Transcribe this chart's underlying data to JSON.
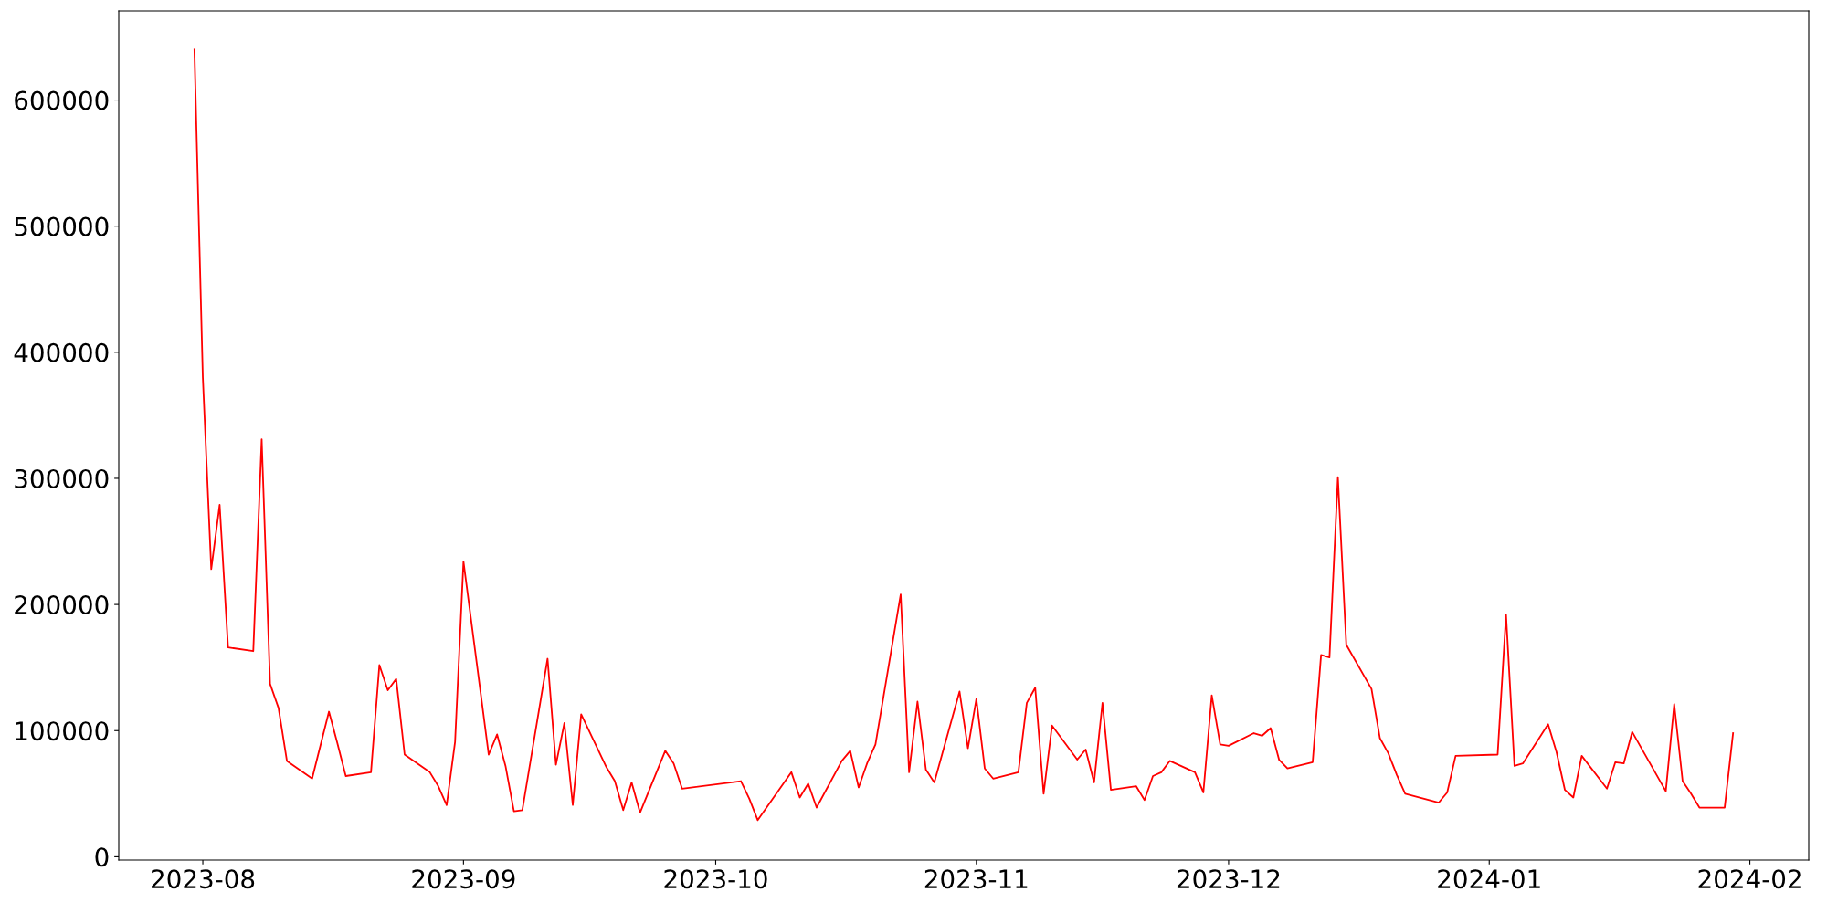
{
  "chart_data": {
    "type": "line",
    "x": [
      "2023-07-31",
      "2023-08-01",
      "2023-08-02",
      "2023-08-03",
      "2023-08-04",
      "2023-08-07",
      "2023-08-08",
      "2023-08-09",
      "2023-08-10",
      "2023-08-11",
      "2023-08-14",
      "2023-08-16",
      "2023-08-17",
      "2023-08-18",
      "2023-08-21",
      "2023-08-22",
      "2023-08-23",
      "2023-08-24",
      "2023-08-25",
      "2023-08-28",
      "2023-08-29",
      "2023-08-30",
      "2023-08-31",
      "2023-09-01",
      "2023-09-04",
      "2023-09-05",
      "2023-09-06",
      "2023-09-07",
      "2023-09-08",
      "2023-09-11",
      "2023-09-12",
      "2023-09-13",
      "2023-09-14",
      "2023-09-15",
      "2023-09-18",
      "2023-09-19",
      "2023-09-20",
      "2023-09-21",
      "2023-09-22",
      "2023-09-25",
      "2023-09-26",
      "2023-09-27",
      "2023-10-04",
      "2023-10-05",
      "2023-10-06",
      "2023-10-10",
      "2023-10-11",
      "2023-10-12",
      "2023-10-13",
      "2023-10-16",
      "2023-10-17",
      "2023-10-18",
      "2023-10-19",
      "2023-10-20",
      "2023-10-23",
      "2023-10-24",
      "2023-10-25",
      "2023-10-26",
      "2023-10-27",
      "2023-10-30",
      "2023-10-31",
      "2023-11-01",
      "2023-11-02",
      "2023-11-03",
      "2023-11-06",
      "2023-11-07",
      "2023-11-08",
      "2023-11-09",
      "2023-11-10",
      "2023-11-13",
      "2023-11-14",
      "2023-11-15",
      "2023-11-16",
      "2023-11-17",
      "2023-11-20",
      "2023-11-21",
      "2023-11-22",
      "2023-11-23",
      "2023-11-24",
      "2023-11-27",
      "2023-11-28",
      "2023-11-29",
      "2023-11-30",
      "2023-12-01",
      "2023-12-04",
      "2023-12-05",
      "2023-12-06",
      "2023-12-07",
      "2023-12-08",
      "2023-12-11",
      "2023-12-12",
      "2023-12-13",
      "2023-12-14",
      "2023-12-15",
      "2023-12-18",
      "2023-12-19",
      "2023-12-20",
      "2023-12-21",
      "2023-12-22",
      "2023-12-26",
      "2023-12-27",
      "2023-12-28",
      "2024-01-02",
      "2024-01-03",
      "2024-01-04",
      "2024-01-05",
      "2024-01-08",
      "2024-01-09",
      "2024-01-10",
      "2024-01-11",
      "2024-01-12",
      "2024-01-15",
      "2024-01-16",
      "2024-01-17",
      "2024-01-18",
      "2024-01-22",
      "2024-01-23",
      "2024-01-24",
      "2024-01-25",
      "2024-01-26",
      "2024-01-29",
      "2024-01-30"
    ],
    "series": [
      {
        "color": "#ff0000",
        "values": [
          640000,
          380000,
          228000,
          279000,
          166000,
          163000,
          331000,
          137000,
          118000,
          76000,
          62000,
          115000,
          90000,
          64000,
          67000,
          152000,
          132000,
          141000,
          81000,
          67000,
          56000,
          41000,
          91000,
          234000,
          81000,
          97000,
          72000,
          36000,
          37000,
          157000,
          73000,
          106000,
          41000,
          113000,
          71000,
          60000,
          37000,
          59000,
          35000,
          84000,
          74000,
          54000,
          60000,
          46000,
          29000,
          67000,
          47000,
          58000,
          39000,
          76000,
          84000,
          55000,
          74000,
          89000,
          208000,
          67000,
          123000,
          69000,
          59000,
          131000,
          86000,
          125000,
          70000,
          62000,
          67000,
          122000,
          134000,
          50000,
          104000,
          77000,
          85000,
          59000,
          122000,
          53000,
          56000,
          45000,
          64000,
          67000,
          76000,
          67000,
          51000,
          128000,
          89000,
          88000,
          98000,
          96000,
          102000,
          77000,
          70000,
          75000,
          160000,
          158000,
          301000,
          168000,
          133000,
          94000,
          82000,
          65000,
          50000,
          43000,
          51000,
          80000,
          81000,
          192000,
          72000,
          74000,
          105000,
          83000,
          53000,
          47000,
          80000,
          54000,
          75000,
          74000,
          99000,
          52000,
          121000,
          60000,
          50000,
          39000,
          39000,
          98000
        ]
      }
    ],
    "xlim": [
      "2023-07-22",
      "2024-02-08"
    ],
    "xticks": [
      {
        "value": "2023-08-01",
        "label": "2023-08"
      },
      {
        "value": "2023-09-01",
        "label": "2023-09"
      },
      {
        "value": "2023-10-01",
        "label": "2023-10"
      },
      {
        "value": "2023-11-01",
        "label": "2023-11"
      },
      {
        "value": "2023-12-01",
        "label": "2023-12"
      },
      {
        "value": "2024-01-01",
        "label": "2024-01"
      },
      {
        "value": "2024-02-01",
        "label": "2024-02"
      }
    ],
    "ylim": [
      -2600,
      670600
    ],
    "yticks": [
      0,
      100000,
      200000,
      300000,
      400000,
      500000,
      600000
    ],
    "grid": false,
    "legend": false,
    "marker": "none",
    "line_style": "solid"
  }
}
